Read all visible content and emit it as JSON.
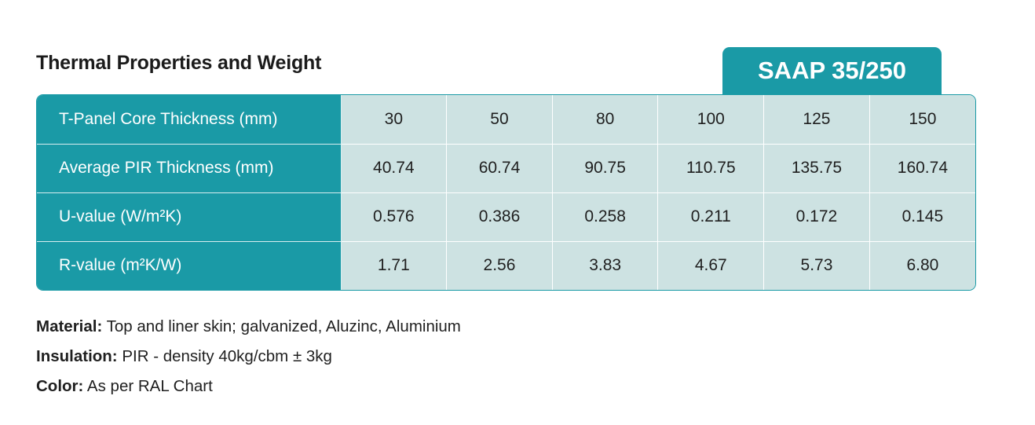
{
  "title": "Thermal Properties and Weight",
  "product_tab": "SAAP 35/250",
  "table": {
    "rows": [
      {
        "label": "T-Panel Core Thickness (mm)",
        "values": [
          "30",
          "50",
          "80",
          "100",
          "125",
          "150"
        ]
      },
      {
        "label": "Average PIR Thickness (mm)",
        "values": [
          "40.74",
          "60.74",
          "90.75",
          "110.75",
          "135.75",
          "160.74"
        ]
      },
      {
        "label": "U-value (W/m²K)",
        "values": [
          "0.576",
          "0.386",
          "0.258",
          "0.211",
          "0.172",
          "0.145"
        ]
      },
      {
        "label": "R-value (m²K/W)",
        "values": [
          "1.71",
          "2.56",
          "3.83",
          "4.67",
          "5.73",
          "6.80"
        ]
      }
    ]
  },
  "notes": [
    {
      "key": "Material:",
      "value": " Top and liner skin; galvanized, Aluzinc, Aluminium"
    },
    {
      "key": "Insulation:",
      "value": " PIR - density 40kg/cbm ± 3kg"
    },
    {
      "key": "Color:",
      "value": " As per RAL Chart"
    }
  ],
  "colors": {
    "accent": "#1a9aa6",
    "cell_bg": "#cde2e2"
  }
}
